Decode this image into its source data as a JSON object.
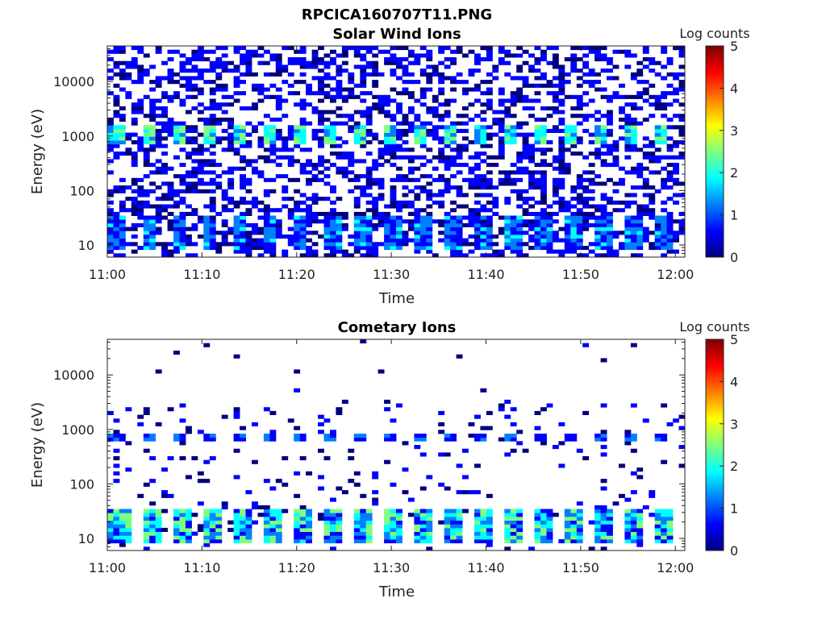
{
  "figure_title": "RPCICA160707T11.PNG",
  "colormap": [
    "#00007f",
    "#0000ff",
    "#007fff",
    "#00ffff",
    "#7fff7f",
    "#ffff00",
    "#ff7f00",
    "#ff0000",
    "#7f0000"
  ],
  "chart_data": [
    {
      "type": "heatmap",
      "title": "Solar Wind Ions",
      "xlabel": "Time",
      "ylabel": "Energy (eV)",
      "x_range": [
        "11:00",
        "12:00"
      ],
      "x_ticks": [
        "11:00",
        "11:10",
        "11:20",
        "11:30",
        "11:40",
        "11:50",
        "12:00"
      ],
      "y_scale": "log",
      "y_range": [
        6,
        45000
      ],
      "y_ticks": [
        "10",
        "100",
        "1000",
        "10000"
      ],
      "colorbar": {
        "label": "Log counts",
        "range": [
          0,
          5
        ],
        "ticks": [
          "0",
          "1",
          "2",
          "3",
          "4",
          "5"
        ]
      },
      "description_of_values": {
        "background_counts": "sparse 0-1 log counts across 6-45000 eV",
        "peak_energy_eV": [
          700,
          1500
        ],
        "peak_log_counts": 2.6,
        "low_energy_band_eV": [
          8,
          35
        ],
        "low_energy_peak_log_counts": 1.8,
        "sweep_period_minutes": 3.2
      }
    },
    {
      "type": "heatmap",
      "title": "Cometary Ions",
      "xlabel": "Time",
      "ylabel": "Energy (eV)",
      "x_range": [
        "11:00",
        "12:00"
      ],
      "x_ticks": [
        "11:00",
        "11:10",
        "11:20",
        "11:30",
        "11:40",
        "11:50",
        "12:00"
      ],
      "y_scale": "log",
      "y_range": [
        6,
        45000
      ],
      "y_ticks": [
        "10",
        "100",
        "1000",
        "10000"
      ],
      "colorbar": {
        "label": "Log counts",
        "range": [
          0,
          5
        ],
        "ticks": [
          "0",
          "1",
          "2",
          "3",
          "4",
          "5"
        ]
      },
      "description_of_values": {
        "band_energy_eV": [
          650,
          850
        ],
        "band_log_counts": 1.3,
        "low_energy_band_eV": [
          8,
          35
        ],
        "low_energy_peak_log_counts": 2.8,
        "sweep_period_minutes": 3.2
      }
    }
  ]
}
